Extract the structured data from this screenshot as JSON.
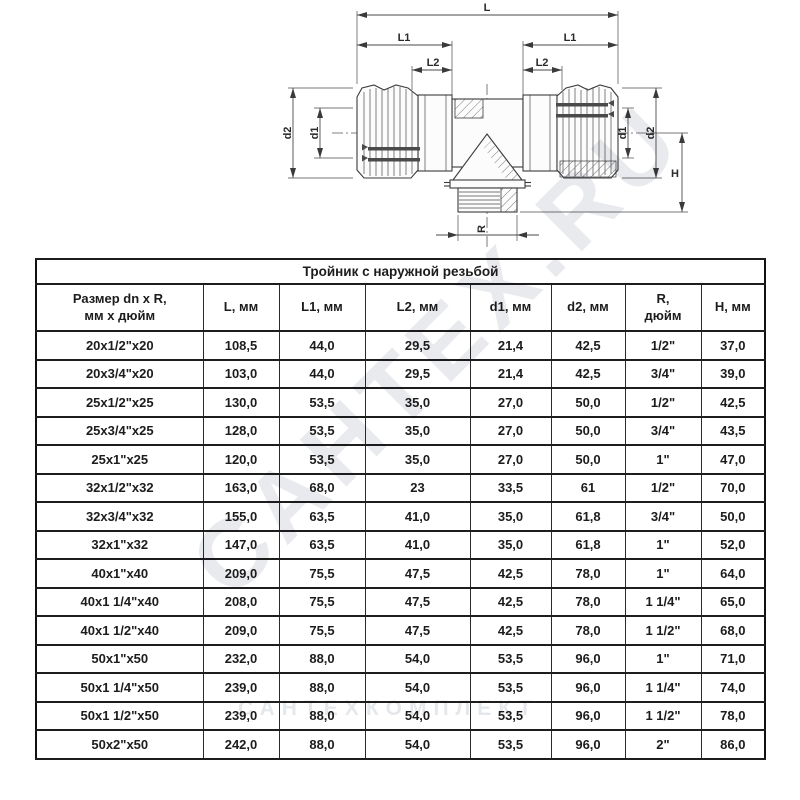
{
  "watermarks": {
    "diagonal": "САНТЕХ.RU",
    "horizontal": "САНТЕХКОМПЛЕКТ"
  },
  "drawing": {
    "description": "tee-compression-fitting-with-male-thread-outlet",
    "labels": {
      "L": "L",
      "L1_left": "L1",
      "L1_right": "L1",
      "L2_left": "L2",
      "L2_right": "L2",
      "d1_left": "d1",
      "d1_right": "d1",
      "d2_left": "d2",
      "d2_right": "d2",
      "H": "H",
      "R": "R"
    }
  },
  "table": {
    "title": "Тройник с наружной резьбой",
    "col_keys": [
      "size",
      "L",
      "L1",
      "L2",
      "d1",
      "d2",
      "R",
      "H"
    ],
    "columns": [
      "Размер dn x R,\nмм х дюйм",
      "L, мм",
      "L1, мм",
      "L2, мм",
      "d1, мм",
      "d2, мм",
      "R,\nдюйм",
      "H, мм"
    ],
    "rows": [
      [
        "20x1/2\"x20",
        "108,5",
        "44,0",
        "29,5",
        "21,4",
        "42,5",
        "1/2\"",
        "37,0"
      ],
      [
        "20x3/4\"x20",
        "103,0",
        "44,0",
        "29,5",
        "21,4",
        "42,5",
        "3/4\"",
        "39,0"
      ],
      [
        "25x1/2\"x25",
        "130,0",
        "53,5",
        "35,0",
        "27,0",
        "50,0",
        "1/2\"",
        "42,5"
      ],
      [
        "25x3/4\"x25",
        "128,0",
        "53,5",
        "35,0",
        "27,0",
        "50,0",
        "3/4\"",
        "43,5"
      ],
      [
        "25x1\"x25",
        "120,0",
        "53,5",
        "35,0",
        "27,0",
        "50,0",
        "1\"",
        "47,0"
      ],
      [
        "32x1/2\"x32",
        "163,0",
        "68,0",
        "23",
        "33,5",
        "61",
        "1/2\"",
        "70,0"
      ],
      [
        "32x3/4\"x32",
        "155,0",
        "63,5",
        "41,0",
        "35,0",
        "61,8",
        "3/4\"",
        "50,0"
      ],
      [
        "32x1\"x32",
        "147,0",
        "63,5",
        "41,0",
        "35,0",
        "61,8",
        "1\"",
        "52,0"
      ],
      [
        "40x1\"x40",
        "209,0",
        "75,5",
        "47,5",
        "42,5",
        "78,0",
        "1\"",
        "64,0"
      ],
      [
        "40x1 1/4\"x40",
        "208,0",
        "75,5",
        "47,5",
        "42,5",
        "78,0",
        "1 1/4\"",
        "65,0"
      ],
      [
        "40x1 1/2\"x40",
        "209,0",
        "75,5",
        "47,5",
        "42,5",
        "78,0",
        "1 1/2\"",
        "68,0"
      ],
      [
        "50x1\"x50",
        "232,0",
        "88,0",
        "54,0",
        "53,5",
        "96,0",
        "1\"",
        "71,0"
      ],
      [
        "50x1 1/4\"x50",
        "239,0",
        "88,0",
        "54,0",
        "53,5",
        "96,0",
        "1 1/4\"",
        "74,0"
      ],
      [
        "50x1 1/2\"x50",
        "239,0",
        "88,0",
        "54,0",
        "53,5",
        "96,0",
        "1 1/2\"",
        "78,0"
      ],
      [
        "50x2\"x50",
        "242,0",
        "88,0",
        "54,0",
        "53,5",
        "96,0",
        "2\"",
        "86,0"
      ]
    ]
  }
}
